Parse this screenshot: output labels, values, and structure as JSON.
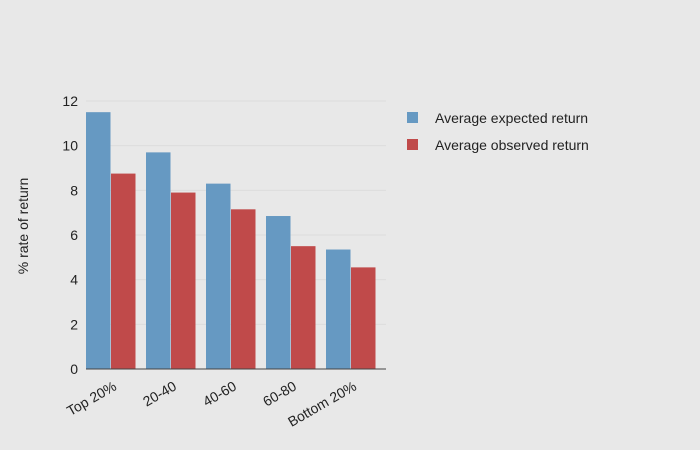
{
  "chart_data": {
    "type": "bar",
    "categories": [
      "Top 20%",
      "20-40",
      "40-60",
      "60-80",
      "Bottom 20%"
    ],
    "series": [
      {
        "name": "Average expected return",
        "values": [
          11.5,
          9.7,
          8.3,
          6.85,
          5.35
        ],
        "color": "#6699c2"
      },
      {
        "name": "Average observed return",
        "values": [
          8.75,
          7.9,
          7.15,
          5.5,
          4.55
        ],
        "color": "#c04a4a"
      }
    ],
    "title": "",
    "xlabel": "",
    "ylabel": "% rate of return",
    "ylim": [
      0,
      12
    ],
    "yticks": [
      0,
      2,
      4,
      6,
      8,
      10,
      12
    ],
    "grid": true,
    "legend": "right"
  }
}
